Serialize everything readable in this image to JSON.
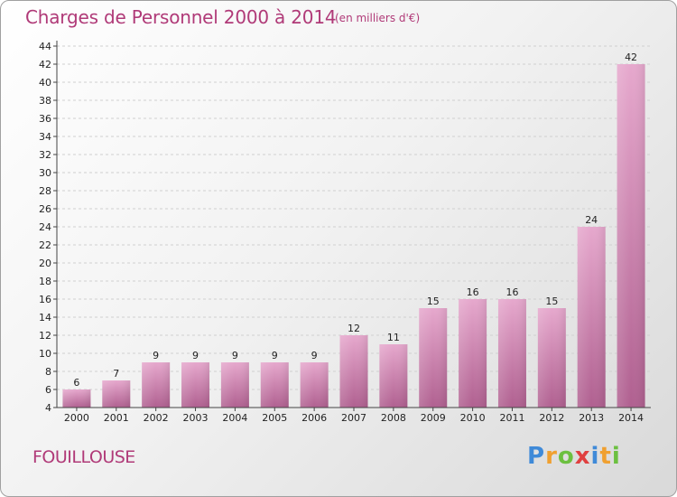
{
  "chart_data": {
    "type": "bar",
    "title": "Charges de Personnel 2000 à 2014",
    "subtitle": "(en milliers d'€)",
    "categories": [
      "2000",
      "2001",
      "2002",
      "2003",
      "2004",
      "2005",
      "2006",
      "2007",
      "2008",
      "2009",
      "2010",
      "2011",
      "2012",
      "2013",
      "2014"
    ],
    "values": [
      6,
      7,
      9,
      9,
      9,
      9,
      9,
      12,
      11,
      15,
      16,
      16,
      15,
      24,
      42
    ],
    "ylim": [
      4,
      44
    ],
    "yticks": [
      4,
      6,
      8,
      10,
      12,
      14,
      16,
      18,
      20,
      22,
      24,
      26,
      28,
      30,
      32,
      34,
      36,
      38,
      40,
      42,
      44
    ],
    "grid": true,
    "bar_color": "#c8609a"
  },
  "footer": {
    "commune": "FOUILLOUSE",
    "logo_letters": [
      "P",
      "r",
      "o",
      "x",
      "i",
      "t",
      "i"
    ],
    "logo_colors": [
      "#3f8ad8",
      "#f0a030",
      "#6cc040",
      "#e04040",
      "#3f8ad8",
      "#f0a030",
      "#6cc040"
    ]
  }
}
